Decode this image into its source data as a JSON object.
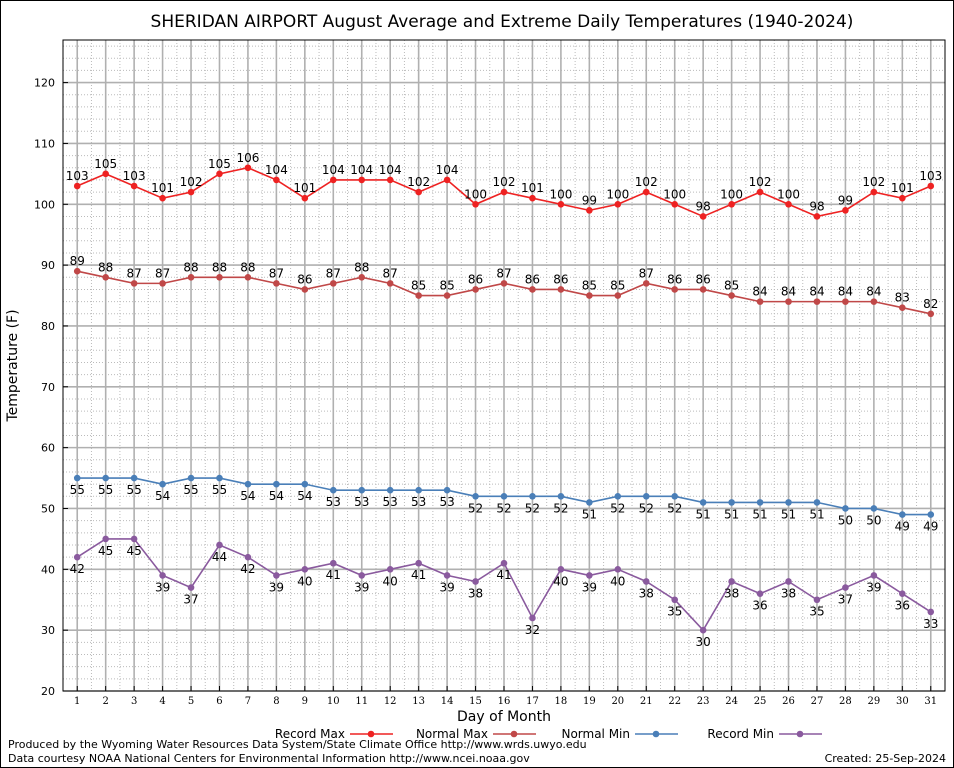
{
  "chart_data": {
    "type": "line",
    "title": "SHERIDAN AIRPORT August Average and Extreme Daily Temperatures (1940-2024)",
    "xlabel": "Day of Month",
    "ylabel": "Temperature (F)",
    "xlim": [
      0.5,
      31.5
    ],
    "ylim": [
      20,
      127
    ],
    "yticks": [
      20,
      30,
      40,
      50,
      60,
      70,
      80,
      90,
      100,
      110,
      120
    ],
    "x": [
      1,
      2,
      3,
      4,
      5,
      6,
      7,
      8,
      9,
      10,
      11,
      12,
      13,
      14,
      15,
      16,
      17,
      18,
      19,
      20,
      21,
      22,
      23,
      24,
      25,
      26,
      27,
      28,
      29,
      30,
      31
    ],
    "grid": true,
    "legend_position": "bottom",
    "series": [
      {
        "name": "Record Max",
        "color": "#ee2222",
        "label_pos": "above",
        "values": [
          103,
          105,
          103,
          101,
          102,
          105,
          106,
          104,
          101,
          104,
          104,
          104,
          102,
          104,
          100,
          102,
          101,
          100,
          99,
          100,
          102,
          100,
          98,
          100,
          102,
          100,
          98,
          99,
          102,
          101,
          103
        ]
      },
      {
        "name": "Normal Max",
        "color": "#c04848",
        "label_pos": "above",
        "values": [
          89,
          88,
          87,
          87,
          88,
          88,
          88,
          87,
          86,
          87,
          88,
          87,
          85,
          85,
          86,
          87,
          86,
          86,
          85,
          85,
          87,
          86,
          86,
          85,
          84,
          84,
          84,
          84,
          84,
          83,
          82
        ]
      },
      {
        "name": "Normal Min",
        "color": "#4a7fb8",
        "label_pos": "below",
        "values": [
          55,
          55,
          55,
          54,
          55,
          55,
          54,
          54,
          54,
          53,
          53,
          53,
          53,
          53,
          52,
          52,
          52,
          52,
          51,
          52,
          52,
          52,
          51,
          51,
          51,
          51,
          51,
          50,
          50,
          49,
          49
        ]
      },
      {
        "name": "Record Min",
        "color": "#8a5a9e",
        "label_pos": "below",
        "values": [
          42,
          45,
          45,
          39,
          37,
          44,
          42,
          39,
          40,
          41,
          39,
          40,
          41,
          39,
          38,
          41,
          32,
          40,
          39,
          40,
          38,
          35,
          30,
          38,
          36,
          38,
          35,
          37,
          39,
          36,
          33
        ]
      }
    ]
  },
  "footer": {
    "credit_line1": "Produced by the Wyoming Water Resources Data System/State Climate Office http://www.wrds.uwyo.edu",
    "credit_line2": "Data courtesy NOAA National Centers for Environmental Information http://www.ncei.noaa.gov",
    "created": "Created:  25-Sep-2024"
  }
}
